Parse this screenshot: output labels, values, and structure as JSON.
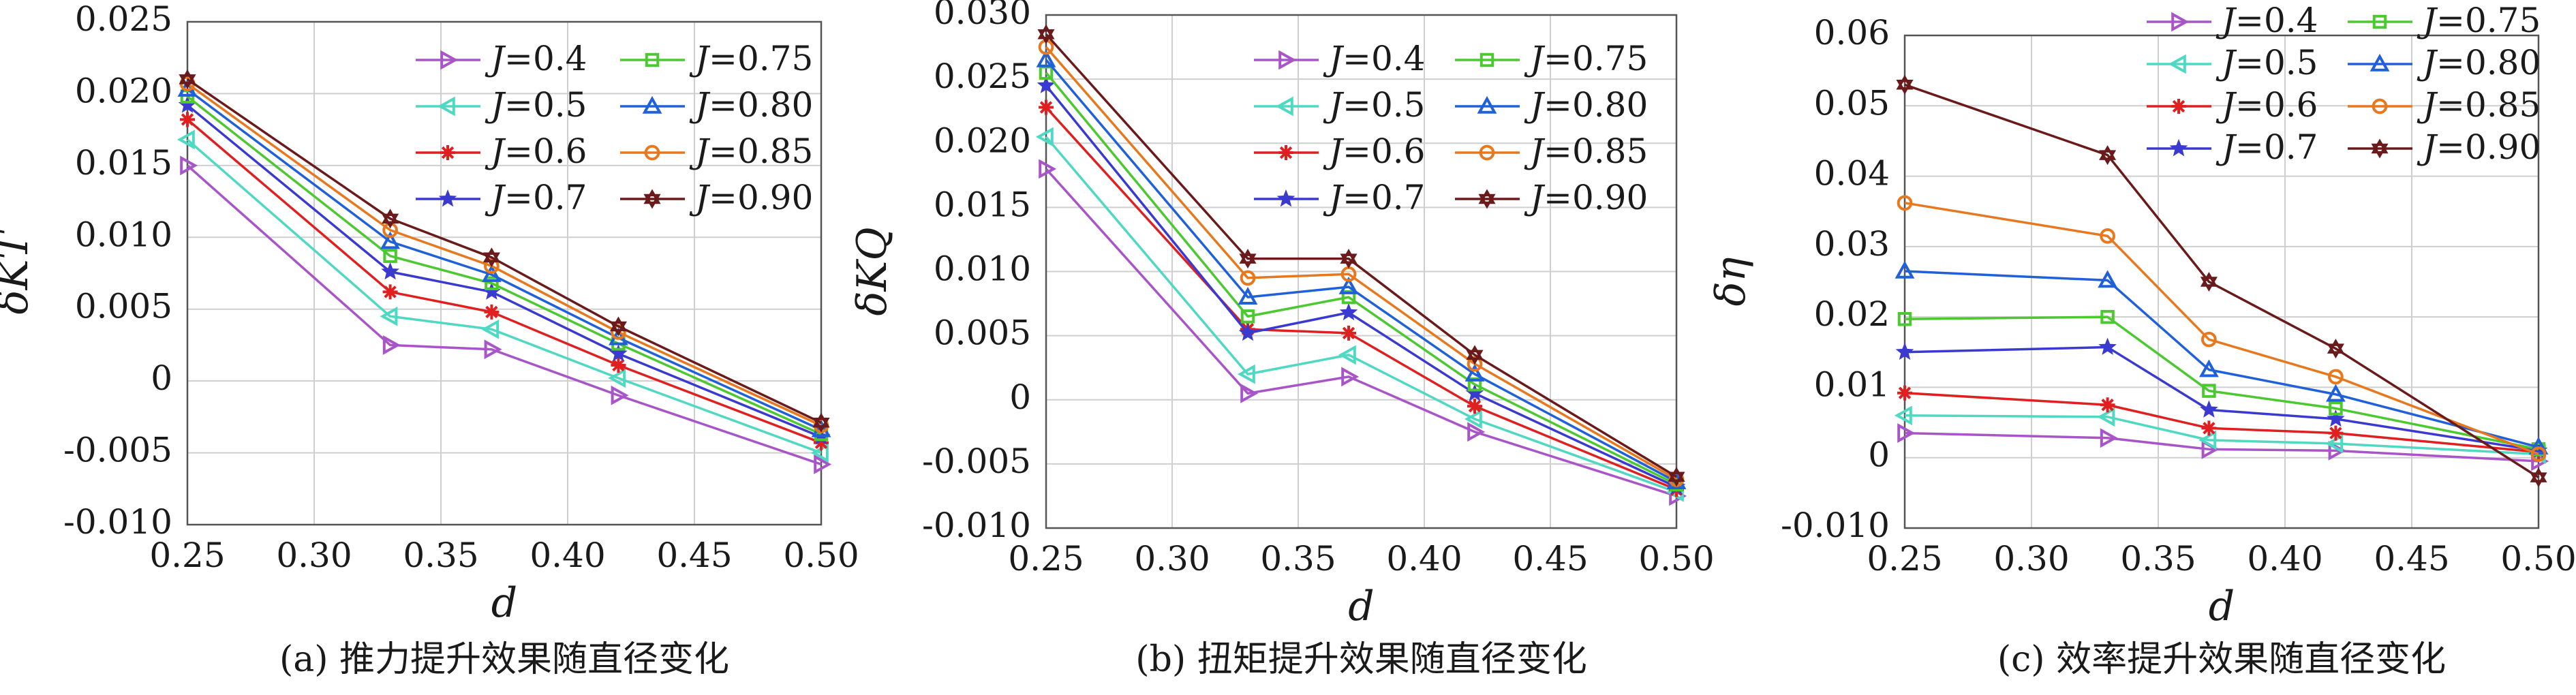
{
  "chart_data": [
    {
      "type": "line",
      "caption": "(a) 推力提升效果随直径变化",
      "xlabel": "d",
      "ylabel": "δKT",
      "xlim": [
        0.25,
        0.5
      ],
      "ylim": [
        -0.01,
        0.025
      ],
      "xticks": [
        "0.25",
        "0.30",
        "0.35",
        "0.40",
        "0.45",
        "0.50"
      ],
      "yticks": [
        "-0.010",
        "-0.005",
        "0",
        "0.005",
        "0.010",
        "0.015",
        "0.020",
        "0.025"
      ],
      "legend_position": "top-right",
      "x": [
        0.25,
        0.33,
        0.37,
        0.42,
        0.5
      ],
      "series": [
        {
          "name": "J=0.4",
          "values": [
            0.015,
            0.0025,
            0.0022,
            -0.001,
            -0.0058
          ]
        },
        {
          "name": "J=0.5",
          "values": [
            0.0168,
            0.0045,
            0.0036,
            0.0002,
            -0.005
          ]
        },
        {
          "name": "J=0.6",
          "values": [
            0.0182,
            0.0062,
            0.0048,
            0.0011,
            -0.0043
          ]
        },
        {
          "name": "J=0.7",
          "values": [
            0.0192,
            0.0076,
            0.0062,
            0.0019,
            -0.0039
          ]
        },
        {
          "name": "J=0.75",
          "values": [
            0.0198,
            0.0087,
            0.0068,
            0.0026,
            -0.0037
          ]
        },
        {
          "name": "J=0.80",
          "values": [
            0.0203,
            0.0097,
            0.0074,
            0.003,
            -0.0034
          ]
        },
        {
          "name": "J=0.85",
          "values": [
            0.0207,
            0.0105,
            0.008,
            0.0034,
            -0.0031
          ]
        },
        {
          "name": "J=0.90",
          "values": [
            0.021,
            0.0113,
            0.0086,
            0.0038,
            -0.0029
          ]
        }
      ]
    },
    {
      "type": "line",
      "caption": "(b) 扭矩提升效果随直径变化",
      "xlabel": "d",
      "ylabel": "δKQ",
      "xlim": [
        0.25,
        0.5
      ],
      "ylim": [
        -0.01,
        0.03
      ],
      "xticks": [
        "0.25",
        "0.30",
        "0.35",
        "0.40",
        "0.45",
        "0.50"
      ],
      "yticks": [
        "-0.010",
        "-0.005",
        "0",
        "0.005",
        "0.010",
        "0.015",
        "0.020",
        "0.025",
        "0.030"
      ],
      "legend_position": "top-right",
      "x": [
        0.25,
        0.33,
        0.37,
        0.42,
        0.5
      ],
      "series": [
        {
          "name": "J=0.4",
          "values": [
            0.018,
            0.0005,
            0.0018,
            -0.0025,
            -0.0075
          ]
        },
        {
          "name": "J=0.5",
          "values": [
            0.0205,
            0.002,
            0.0035,
            -0.0015,
            -0.0072
          ]
        },
        {
          "name": "J=0.6",
          "values": [
            0.0228,
            0.0055,
            0.0052,
            -0.0005,
            -0.007
          ]
        },
        {
          "name": "J=0.7",
          "values": [
            0.0245,
            0.0052,
            0.0068,
            0.0005,
            -0.0068
          ]
        },
        {
          "name": "J=0.75",
          "values": [
            0.0255,
            0.0065,
            0.008,
            0.0012,
            -0.0066
          ]
        },
        {
          "name": "J=0.80",
          "values": [
            0.0265,
            0.008,
            0.0088,
            0.002,
            -0.0064
          ]
        },
        {
          "name": "J=0.85",
          "values": [
            0.0275,
            0.0095,
            0.0098,
            0.0028,
            -0.0062
          ]
        },
        {
          "name": "J=0.90",
          "values": [
            0.0285,
            0.011,
            0.011,
            0.0035,
            -0.006
          ]
        }
      ]
    },
    {
      "type": "line",
      "caption": "(c) 效率提升效果随直径变化",
      "xlabel": "d",
      "ylabel": "δη",
      "xlim": [
        0.25,
        0.5
      ],
      "ylim": [
        -0.01,
        0.06
      ],
      "xticks": [
        "0.25",
        "0.30",
        "0.35",
        "0.40",
        "0.45",
        "0.50"
      ],
      "yticks": [
        "-0.010",
        "0",
        "0.01",
        "0.02",
        "0.03",
        "0.04",
        "0.05",
        "0.06"
      ],
      "legend_position": "top",
      "x": [
        0.25,
        0.33,
        0.37,
        0.42,
        0.5
      ],
      "series": [
        {
          "name": "J=0.4",
          "values": [
            0.0035,
            0.0028,
            0.0012,
            0.001,
            -0.0005
          ]
        },
        {
          "name": "J=0.5",
          "values": [
            0.006,
            0.0058,
            0.0025,
            0.002,
            0.0005
          ]
        },
        {
          "name": "J=0.6",
          "values": [
            0.0092,
            0.0075,
            0.0042,
            0.0035,
            0.0008
          ]
        },
        {
          "name": "J=0.7",
          "values": [
            0.015,
            0.0157,
            0.0068,
            0.0055,
            0.001
          ]
        },
        {
          "name": "J=0.75",
          "values": [
            0.0197,
            0.02,
            0.0095,
            0.007,
            0.0012
          ]
        },
        {
          "name": "J=0.80",
          "values": [
            0.0265,
            0.0252,
            0.0125,
            0.009,
            0.0015
          ]
        },
        {
          "name": "J=0.85",
          "values": [
            0.0362,
            0.0315,
            0.0168,
            0.0115,
            0.0005
          ]
        },
        {
          "name": "J=0.90",
          "values": [
            0.053,
            0.043,
            0.025,
            0.0155,
            -0.0028
          ]
        }
      ]
    }
  ],
  "series_styles": [
    {
      "color": "#a855c8",
      "marker": "triangle-right"
    },
    {
      "color": "#4fd8c2",
      "marker": "triangle-left"
    },
    {
      "color": "#e02020",
      "marker": "asterisk"
    },
    {
      "color": "#3a3ad0",
      "marker": "star"
    },
    {
      "color": "#4cc830",
      "marker": "square"
    },
    {
      "color": "#2060d8",
      "marker": "triangle-up"
    },
    {
      "color": "#e8781e",
      "marker": "circle"
    },
    {
      "color": "#6a1a1a",
      "marker": "hexagram"
    }
  ]
}
